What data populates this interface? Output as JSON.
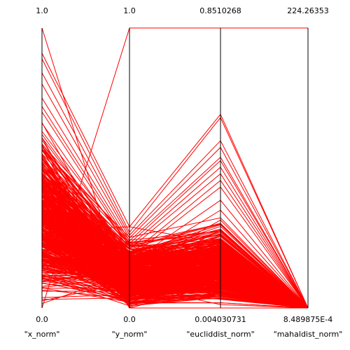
{
  "chart_data": {
    "type": "parallel-coordinates",
    "colors": {
      "line": "#ff0000",
      "axis": "#000000",
      "background": "#ffffff"
    },
    "axes": [
      {
        "name": "\"x_norm\"",
        "max_label": "1.0",
        "min_label": "0.0"
      },
      {
        "name": "\"y_norm\"",
        "max_label": "1.0",
        "min_label": "0.0"
      },
      {
        "name": "\"eucliddist_norm\"",
        "max_label": "0.8510268",
        "min_label": "0.004030731"
      },
      {
        "name": "\"mahaldist_norm\"",
        "max_label": "224.26353",
        "min_label": "8.489875E-4"
      }
    ],
    "axis_ranges": [
      [
        0.0,
        1.0
      ],
      [
        0.0,
        1.0
      ],
      [
        0.004030731,
        0.8510268
      ],
      [
        0.00084899,
        224.26353
      ]
    ],
    "highlighted_records": [
      [
        1.0,
        0.0,
        0.004030731,
        0.00084899
      ],
      [
        0.0,
        1.0,
        0.8510268,
        224.26353
      ],
      [
        0.91,
        0.29,
        0.59,
        0.045
      ],
      [
        0.89,
        0.27,
        0.58,
        0.035
      ],
      [
        0.84,
        0.26,
        0.51,
        0.028
      ],
      [
        0.8,
        0.25,
        0.49,
        0.022
      ],
      [
        0.75,
        0.24,
        0.46,
        0.018
      ],
      [
        0.72,
        0.23,
        0.45,
        0.015
      ],
      [
        0.7,
        0.22,
        0.43,
        0.012
      ],
      [
        0.66,
        0.21,
        0.41,
        0.01
      ],
      [
        0.62,
        0.19,
        0.39,
        0.008
      ],
      [
        0.58,
        0.18,
        0.37,
        0.006
      ],
      [
        0.52,
        0.16,
        0.33,
        0.005
      ],
      [
        0.45,
        0.15,
        0.3,
        0.004
      ],
      [
        0.38,
        0.13,
        0.27,
        0.003
      ],
      [
        0.3,
        0.11,
        0.24,
        0.003
      ],
      [
        0.22,
        0.1,
        0.21,
        0.002
      ],
      [
        0.12,
        0.08,
        0.17,
        0.002
      ],
      [
        0.06,
        0.06,
        0.13,
        0.001
      ],
      [
        0.09,
        0.03,
        0.08,
        0.001
      ],
      [
        0.23,
        0.02,
        0.05,
        0.001
      ],
      [
        0.32,
        0.02,
        0.02,
        0.001
      ],
      [
        0.4,
        0.06,
        0.11,
        0.002
      ],
      [
        0.28,
        0.29,
        0.2,
        0.003
      ]
    ]
  }
}
